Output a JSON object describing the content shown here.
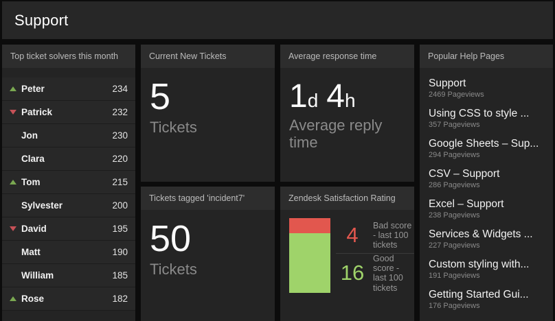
{
  "header": {
    "title": "Support"
  },
  "panels": {
    "solvers": {
      "title": "Top ticket solvers this month",
      "items": [
        {
          "name": "Peter",
          "value": "234",
          "trend": "up"
        },
        {
          "name": "Patrick",
          "value": "232",
          "trend": "down"
        },
        {
          "name": "Jon",
          "value": "230",
          "trend": "none"
        },
        {
          "name": "Clara",
          "value": "220",
          "trend": "none"
        },
        {
          "name": "Tom",
          "value": "215",
          "trend": "up"
        },
        {
          "name": "Sylvester",
          "value": "200",
          "trend": "none"
        },
        {
          "name": "David",
          "value": "195",
          "trend": "down"
        },
        {
          "name": "Matt",
          "value": "190",
          "trend": "none"
        },
        {
          "name": "William",
          "value": "185",
          "trend": "none"
        },
        {
          "name": "Rose",
          "value": "182",
          "trend": "up"
        }
      ]
    },
    "new_tickets": {
      "title": "Current New Tickets",
      "value": "5",
      "label": "Tickets"
    },
    "response_time": {
      "title": "Average response time",
      "parts": [
        {
          "num": "1",
          "unit": "d"
        },
        {
          "num": "4",
          "unit": "h"
        }
      ],
      "label": "Average reply time"
    },
    "incident": {
      "title": "Tickets tagged 'incident7'",
      "value": "50",
      "label": "Tickets"
    },
    "satisfaction": {
      "title": "Zendesk Satisfaction Rating",
      "bad": {
        "value": 4,
        "label": "Bad score - last 100 tickets"
      },
      "good": {
        "value": 16,
        "label": "Good score - last 100 tickets"
      }
    },
    "help_pages": {
      "title": "Popular Help Pages",
      "items": [
        {
          "title": "Support",
          "views": "2469 Pageviews"
        },
        {
          "title": "Using CSS to style ...",
          "views": "357 Pageviews"
        },
        {
          "title": "Google Sheets – Sup...",
          "views": "294 Pageviews"
        },
        {
          "title": "CSV – Support",
          "views": "286 Pageviews"
        },
        {
          "title": "Excel – Support",
          "views": "238 Pageviews"
        },
        {
          "title": "Services & Widgets ...",
          "views": "227 Pageviews"
        },
        {
          "title": "Custom styling with...",
          "views": "191 Pageviews"
        },
        {
          "title": "Getting Started Gui...",
          "views": "176 Pageviews"
        }
      ]
    }
  },
  "colors": {
    "good": "#9fd36a",
    "bad": "#e2574e",
    "trend_up": "#7aa851",
    "trend_down": "#c65157"
  },
  "chart_data": {
    "type": "bar",
    "title": "Zendesk Satisfaction Rating",
    "categories": [
      "Bad score - last 100 tickets",
      "Good score - last 100 tickets"
    ],
    "values": [
      4,
      16
    ],
    "colors": [
      "#e2574e",
      "#9fd36a"
    ],
    "layout": "single stacked vertical bar, red segment on top (bad), green below (good), value labels right of bar"
  }
}
